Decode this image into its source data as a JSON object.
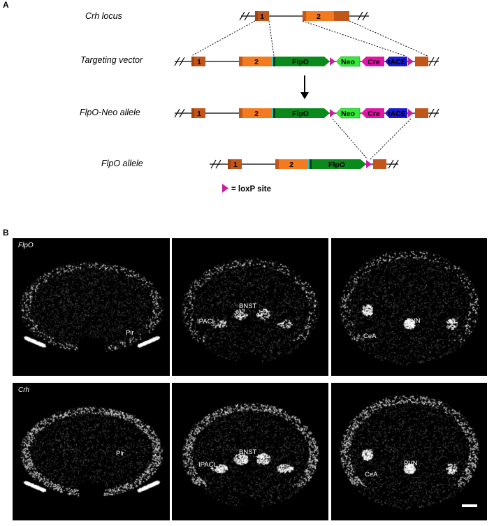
{
  "panel_a": {
    "letter": "A",
    "rows": {
      "locus": "Crh locus",
      "vector": "Targeting vector",
      "flpo_neo": "FlpO-Neo allele",
      "flpo": "FlpO allele"
    },
    "labels": {
      "exon1": "1",
      "exon2": "2",
      "flpo": "FlpO",
      "neo": "Neo",
      "cre": "Cre",
      "tace": "tACE"
    },
    "legend": "= loxP site",
    "colors": {
      "exon_dark": "#c0561a",
      "exon_light": "#f47a20",
      "flpo": "#0b8a1c",
      "flpo_edge": "#30c3b6",
      "neo": "#35e83a",
      "cre": "#e014a6",
      "tace": "#1a1ad0",
      "loxp": "#c81fa0"
    }
  },
  "panel_b": {
    "letter": "B",
    "rows": [
      {
        "gene": "FlpO",
        "sections": [
          {
            "regions": [
              "Pir"
            ]
          },
          {
            "regions": [
              "BNST",
              "IPACL"
            ]
          },
          {
            "regions": [
              "PVN",
              "CeA"
            ]
          }
        ]
      },
      {
        "gene": "Crh",
        "sections": [
          {
            "regions": [
              "Pir"
            ]
          },
          {
            "regions": [
              "BNST",
              "IPACL"
            ]
          },
          {
            "regions": [
              "PVN",
              "CeA"
            ]
          }
        ]
      }
    ]
  }
}
